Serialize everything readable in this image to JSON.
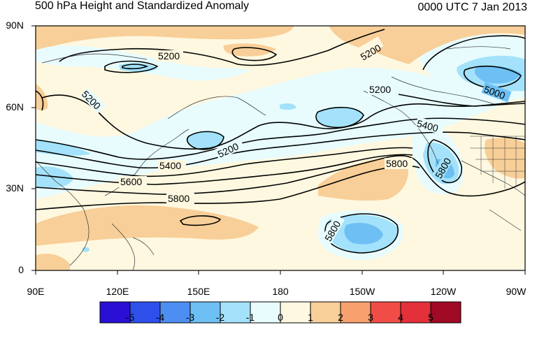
{
  "title": "500 hPa Height and Standardized Anomaly",
  "datetime": "0000 UTC 7 Jan 2013",
  "lat_labels": [
    "90N",
    "60N",
    "30N",
    "0"
  ],
  "lon_labels": [
    "90E",
    "120E",
    "150E",
    "180",
    "150W",
    "120W",
    "90W"
  ],
  "colorbar": {
    "labels": [
      "-5",
      "-4",
      "-3",
      "-2",
      "-1",
      "0",
      "1",
      "2",
      "3",
      "4",
      "5"
    ],
    "colors": [
      "#2a10d4",
      "#2e4fea",
      "#4c8ef2",
      "#6ec0f4",
      "#a3e2fa",
      "#e8fcfe",
      "#fef8e0",
      "#f8cf98",
      "#f6a16e",
      "#f04d46",
      "#e4303a",
      "#a00a24"
    ]
  },
  "contour_labels": [
    "5200",
    "5200",
    "5200",
    "5200",
    "5000",
    "5400",
    "5400",
    "5200",
    "5600",
    "5800",
    "5800",
    "5800",
    "5800"
  ],
  "colors": {
    "negative_light": "#e8fcfe",
    "negative_mid": "#a3e2fa",
    "negative_strong": "#6ec0f4",
    "positive_light": "#fef8e0",
    "positive_mid": "#f8cf98",
    "contour": "#000000",
    "coast": "#333333"
  }
}
